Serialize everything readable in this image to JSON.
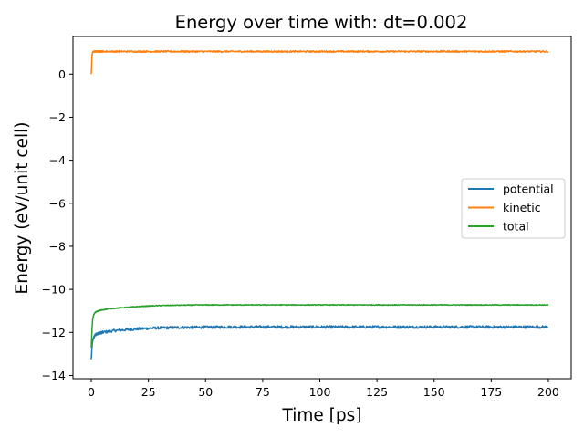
{
  "chart_data": {
    "type": "line",
    "title": "Energy over time with: dt=0.002",
    "xlabel": "Time [ps]",
    "ylabel": "Energy (eV/unit cell)",
    "xlim": [
      -8,
      210
    ],
    "ylim": [
      -14.15,
      1.75
    ],
    "xticks": [
      0,
      25,
      50,
      75,
      100,
      125,
      150,
      175,
      200
    ],
    "yticks": [
      -14,
      -12,
      -10,
      -8,
      -6,
      -4,
      -2,
      0
    ],
    "grid": false,
    "legend_position": "center-right",
    "series": [
      {
        "name": "potential",
        "color": "#1f77b4",
        "x": [
          0,
          0.3,
          0.6,
          1,
          1.5,
          2,
          3,
          4,
          6,
          8,
          10,
          15,
          20,
          25,
          30,
          40,
          50,
          60,
          75,
          100,
          125,
          150,
          175,
          200
        ],
        "y": [
          -13.25,
          -12.7,
          -12.4,
          -12.25,
          -12.15,
          -12.1,
          -12.05,
          -12.02,
          -11.98,
          -11.95,
          -11.92,
          -11.88,
          -11.84,
          -11.81,
          -11.79,
          -11.77,
          -11.76,
          -11.75,
          -11.75,
          -11.75,
          -11.75,
          -11.75,
          -11.75,
          -11.75
        ],
        "noise": 0.06
      },
      {
        "name": "kinetic",
        "color": "#ff7f0e",
        "x": [
          0,
          0.3,
          0.6,
          1,
          2,
          5,
          10,
          25,
          50,
          100,
          150,
          200
        ],
        "y": [
          0.0,
          0.85,
          1.0,
          1.05,
          1.05,
          1.05,
          1.05,
          1.05,
          1.05,
          1.05,
          1.05,
          1.05
        ],
        "noise": 0.035
      },
      {
        "name": "total",
        "color": "#2ca02c",
        "x": [
          0,
          0.3,
          0.6,
          1,
          1.5,
          2,
          3,
          5,
          8,
          10,
          15,
          20,
          25,
          30,
          40,
          50,
          75,
          100,
          125,
          150,
          175,
          200
        ],
        "y": [
          -12.7,
          -11.9,
          -11.4,
          -11.2,
          -11.1,
          -11.05,
          -11.0,
          -10.95,
          -10.9,
          -10.88,
          -10.84,
          -10.8,
          -10.77,
          -10.75,
          -10.73,
          -10.72,
          -10.72,
          -10.72,
          -10.72,
          -10.72,
          -10.72,
          -10.72
        ],
        "noise": 0.018
      }
    ]
  }
}
